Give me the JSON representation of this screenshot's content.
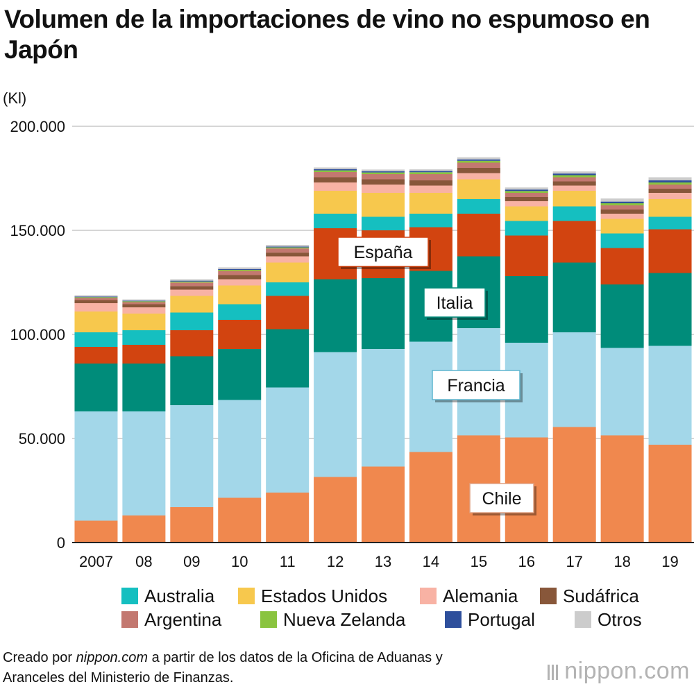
{
  "title": "Volumen de la importaciones de vino no espumoso en Japón",
  "source_prefix": "Creado por ",
  "source_site": "nippon.com",
  "source_suffix": " a partir de los datos de la Oficina de Aduanas y Aranceles del Ministerio de Finanzas.",
  "logo_text": "nippon.com",
  "chart_data": {
    "type": "bar",
    "stacked": true,
    "title": "Volumen de la importaciones de vino no espumoso en Japón",
    "ylabel": "(Kl)",
    "xlabel": "",
    "ylim": [
      0,
      200000
    ],
    "yticks": [
      0,
      50000,
      100000,
      150000,
      200000
    ],
    "ytick_labels": [
      "0",
      "50.000",
      "100.000",
      "150.000",
      "200.000"
    ],
    "grid": true,
    "legend_position": "bottom",
    "categories": [
      "2007",
      "08",
      "09",
      "10",
      "11",
      "12",
      "13",
      "14",
      "15",
      "16",
      "17",
      "18",
      "19"
    ],
    "series": [
      {
        "name": "Chile",
        "color": "#f0884e",
        "values": [
          10500,
          13000,
          17000,
          21500,
          24000,
          31500,
          36500,
          43500,
          51500,
          50500,
          55500,
          51500,
          47000
        ]
      },
      {
        "name": "Francia",
        "color": "#a3d7e9",
        "values": [
          52500,
          50000,
          49000,
          47000,
          50500,
          60000,
          56500,
          53000,
          51500,
          45500,
          45500,
          42000,
          47500
        ]
      },
      {
        "name": "Italia",
        "color": "#008c7a",
        "values": [
          23000,
          23000,
          23500,
          24500,
          28000,
          35000,
          34000,
          34000,
          34500,
          32000,
          33500,
          30500,
          35000
        ]
      },
      {
        "name": "España",
        "color": "#d24410",
        "values": [
          8000,
          9000,
          12500,
          14000,
          16000,
          24500,
          23000,
          21000,
          20500,
          19500,
          20000,
          17500,
          21000
        ]
      },
      {
        "name": "Australia",
        "color": "#15bfc0",
        "values": [
          7000,
          7000,
          8500,
          7500,
          6500,
          7000,
          6500,
          6500,
          7000,
          7000,
          7000,
          7000,
          6000
        ]
      },
      {
        "name": "Estados Unidos",
        "color": "#f7c84d",
        "values": [
          10000,
          8000,
          8000,
          9000,
          9500,
          11000,
          11500,
          10000,
          9500,
          7000,
          7500,
          7000,
          8500
        ]
      },
      {
        "name": "Alemania",
        "color": "#f8b2a4",
        "values": [
          4000,
          3000,
          3000,
          3000,
          3000,
          4000,
          4000,
          3500,
          3000,
          2500,
          2500,
          2500,
          3000
        ]
      },
      {
        "name": "Sudáfrica",
        "color": "#88573a",
        "values": [
          1500,
          1500,
          1700,
          2000,
          1800,
          2500,
          2500,
          2500,
          2500,
          2000,
          2000,
          2000,
          2000
        ]
      },
      {
        "name": "Argentina",
        "color": "#c37870",
        "values": [
          1000,
          1000,
          1700,
          2000,
          2000,
          2500,
          2500,
          3000,
          2500,
          2000,
          2000,
          2000,
          2000
        ]
      },
      {
        "name": "Nueva Zelanda",
        "color": "#8ac43f",
        "values": [
          400,
          400,
          500,
          500,
          500,
          800,
          800,
          900,
          900,
          900,
          1000,
          1000,
          1000
        ]
      },
      {
        "name": "Portugal",
        "color": "#2e4f9c",
        "values": [
          300,
          300,
          400,
          400,
          400,
          600,
          600,
          600,
          700,
          700,
          800,
          800,
          1000
        ]
      },
      {
        "name": "Otros",
        "color": "#cccccc",
        "values": [
          600,
          600,
          700,
          800,
          800,
          800,
          800,
          800,
          1000,
          1000,
          1000,
          1500,
          1500
        ]
      }
    ],
    "annotations": [
      "España",
      "Italia",
      "Francia",
      "Chile"
    ]
  },
  "legend": {
    "rows": [
      [
        {
          "label": "Australia",
          "color": "#15bfc0"
        },
        {
          "label": "Estados Unidos",
          "color": "#f7c84d"
        },
        {
          "label": "Alemania",
          "color": "#f8b2a4"
        },
        {
          "label": "Sudáfrica",
          "color": "#88573a"
        }
      ],
      [
        {
          "label": "Argentina",
          "color": "#c37870"
        },
        {
          "label": "Nueva Zelanda",
          "color": "#8ac43f"
        },
        {
          "label": "Portugal",
          "color": "#2e4f9c"
        },
        {
          "label": "Otros",
          "color": "#cccccc"
        }
      ]
    ]
  }
}
